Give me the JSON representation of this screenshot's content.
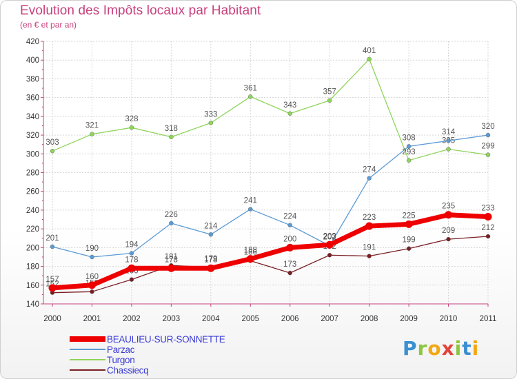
{
  "header": {
    "title": "Evolution des Impôts locaux par Habitant",
    "subtitle": "(en € et par an)"
  },
  "logo": {
    "text": "Proxiti",
    "letters": [
      {
        "ch": "P",
        "color": "#3a8fd0"
      },
      {
        "ch": "r",
        "color": "#8cc63f"
      },
      {
        "ch": "o",
        "color": "#f3a712"
      },
      {
        "ch": "x",
        "color": "#e4423b"
      },
      {
        "ch": "i",
        "color": "#8cc63f"
      },
      {
        "ch": "t",
        "color": "#3a8fd0"
      },
      {
        "ch": "i",
        "color": "#f3a712"
      }
    ]
  },
  "chart_data": {
    "type": "line",
    "title": "Evolution des Impôts locaux par Habitant",
    "subtitle": "(en € et par an)",
    "x": [
      2000,
      2001,
      2002,
      2003,
      2004,
      2005,
      2006,
      2007,
      2008,
      2009,
      2010,
      2011
    ],
    "ylim": [
      140,
      420
    ],
    "yticks": [
      140,
      160,
      180,
      200,
      220,
      240,
      260,
      280,
      300,
      320,
      340,
      360,
      380,
      400,
      420
    ],
    "grid": true,
    "legend_position": "bottom-left",
    "series": [
      {
        "name": "Turgon",
        "color": "#8fd45a",
        "values": [
          303,
          321,
          328,
          318,
          333,
          361,
          343,
          357,
          401,
          293,
          305,
          299
        ]
      },
      {
        "name": "Parzac",
        "color": "#5b9bd5",
        "values": [
          201,
          190,
          194,
          226,
          214,
          241,
          224,
          202,
          274,
          308,
          314,
          320
        ]
      },
      {
        "name": "Chassiecq",
        "color": "#7a1f24",
        "values": [
          152,
          153,
          166,
          181,
          179,
          186,
          173,
          192,
          191,
          199,
          209,
          212
        ]
      },
      {
        "name": "BEAULIEU-SUR-SONNETTE",
        "color": "#ee0000",
        "values": [
          157,
          160,
          178,
          178,
          178,
          188,
          200,
          203,
          223,
          225,
          235,
          233
        ]
      }
    ],
    "legend_order": [
      "BEAULIEU-SUR-SONNETTE",
      "Parzac",
      "Turgon",
      "Chassiecq"
    ],
    "legend_text_color": "#3a3ad8"
  }
}
